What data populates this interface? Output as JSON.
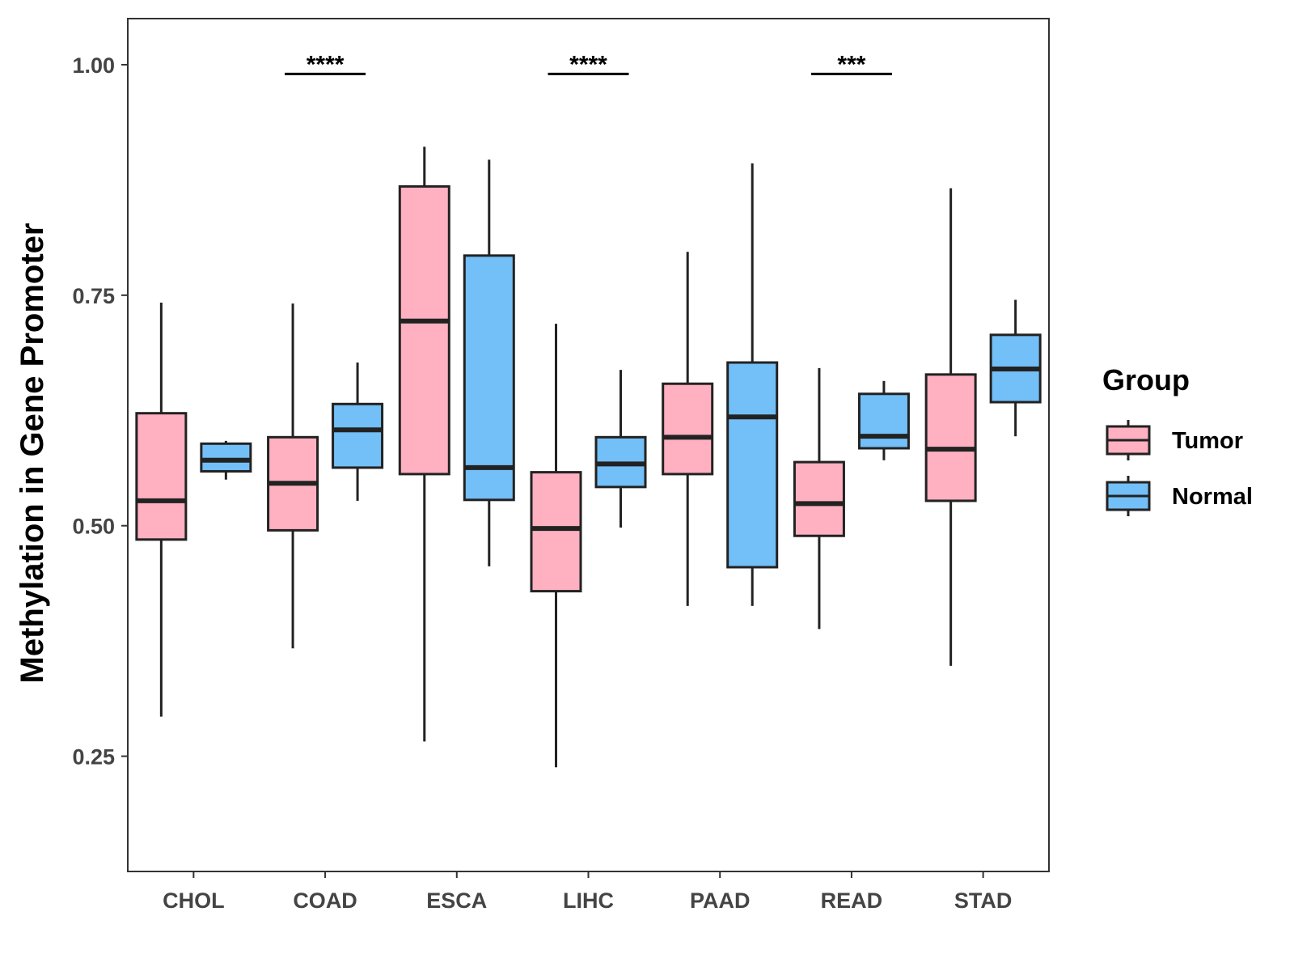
{
  "chart_data": {
    "type": "box",
    "title": "",
    "xlabel": "",
    "ylabel": "Methylation in Gene Promoter",
    "ylim": [
      0.125,
      1.05
    ],
    "yticks": [
      "0.25",
      "0.50",
      "0.75",
      "1.00"
    ],
    "ytick_values": [
      0.25,
      0.5,
      0.75,
      1.0
    ],
    "categories": [
      "CHOL",
      "COAD",
      "ESCA",
      "LIHC",
      "PAAD",
      "READ",
      "STAD"
    ],
    "legend": {
      "title": "Group",
      "position": "right",
      "entries": [
        {
          "name": "Tumor",
          "color": "#FFB0C1"
        },
        {
          "name": "Normal",
          "color": "#73BFF7"
        }
      ]
    },
    "series": [
      {
        "name": "Tumor",
        "color": "#FFB0C1",
        "boxes": [
          {
            "min": 0.293,
            "q1": 0.485,
            "median": 0.527,
            "q3": 0.622,
            "max": 0.742
          },
          {
            "min": 0.367,
            "q1": 0.495,
            "median": 0.546,
            "q3": 0.596,
            "max": 0.741
          },
          {
            "min": 0.266,
            "q1": 0.556,
            "median": 0.722,
            "q3": 0.868,
            "max": 0.911
          },
          {
            "min": 0.238,
            "q1": 0.429,
            "median": 0.497,
            "q3": 0.558,
            "max": 0.719
          },
          {
            "min": 0.413,
            "q1": 0.556,
            "median": 0.596,
            "q3": 0.654,
            "max": 0.797
          },
          {
            "min": 0.388,
            "q1": 0.489,
            "median": 0.524,
            "q3": 0.569,
            "max": 0.671
          },
          {
            "min": 0.348,
            "q1": 0.527,
            "median": 0.583,
            "q3": 0.664,
            "max": 0.866
          }
        ]
      },
      {
        "name": "Normal",
        "color": "#73BFF7",
        "boxes": [
          {
            "min": 0.55,
            "q1": 0.559,
            "median": 0.571,
            "q3": 0.589,
            "max": 0.592
          },
          {
            "min": 0.527,
            "q1": 0.563,
            "median": 0.604,
            "q3": 0.632,
            "max": 0.677
          },
          {
            "min": 0.456,
            "q1": 0.528,
            "median": 0.563,
            "q3": 0.793,
            "max": 0.897
          },
          {
            "min": 0.498,
            "q1": 0.542,
            "median": 0.567,
            "q3": 0.596,
            "max": 0.669
          },
          {
            "min": 0.413,
            "q1": 0.455,
            "median": 0.618,
            "q3": 0.677,
            "max": 0.893
          },
          {
            "min": 0.571,
            "q1": 0.584,
            "median": 0.597,
            "q3": 0.643,
            "max": 0.657
          },
          {
            "min": 0.597,
            "q1": 0.634,
            "median": 0.67,
            "q3": 0.707,
            "max": 0.745
          }
        ]
      }
    ],
    "significance": [
      {
        "category": "COAD",
        "label": "****",
        "y": 0.99
      },
      {
        "category": "LIHC",
        "label": "****",
        "y": 0.99
      },
      {
        "category": "READ",
        "label": "***",
        "y": 0.99
      }
    ]
  }
}
